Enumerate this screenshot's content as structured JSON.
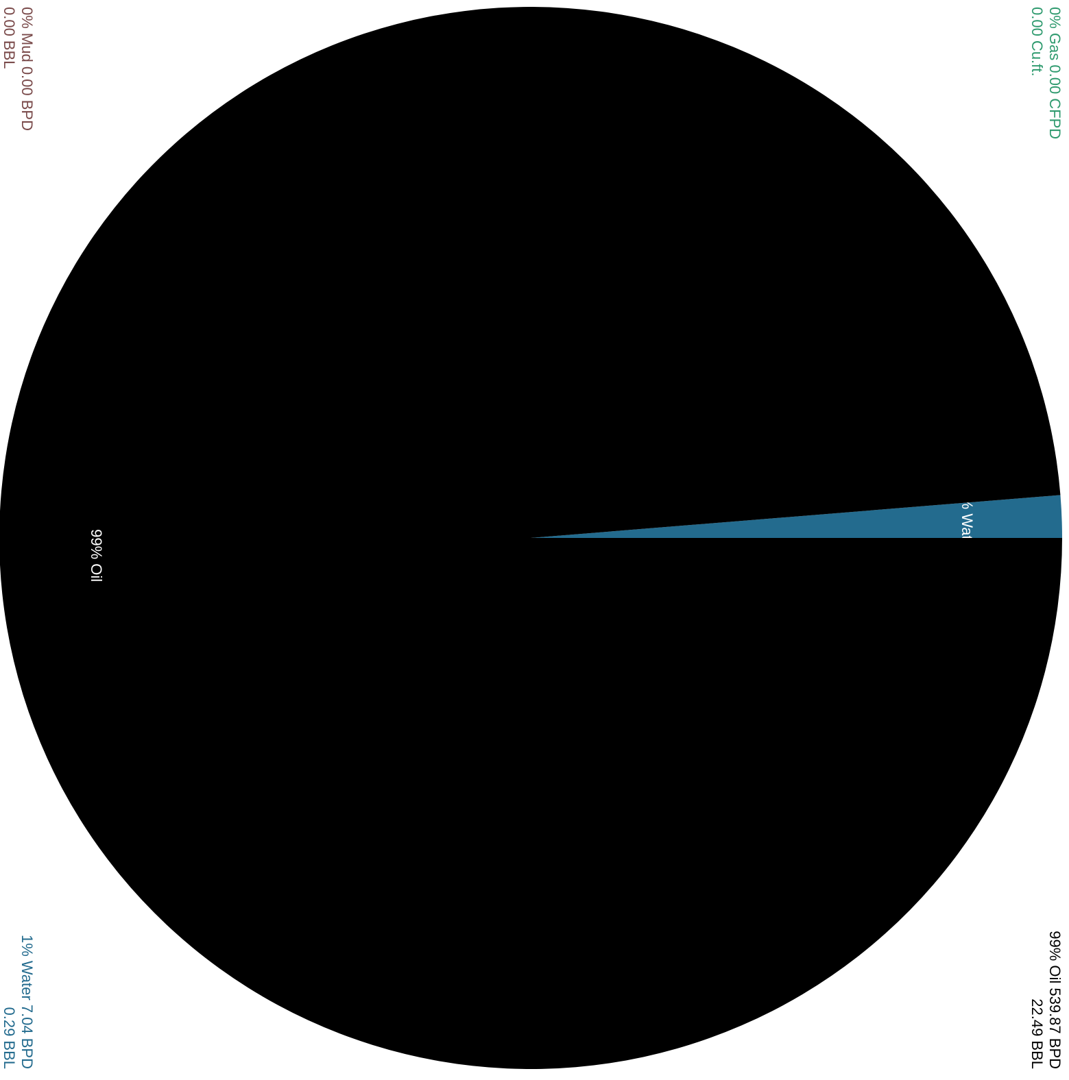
{
  "chart_data": {
    "type": "pie",
    "categories": [
      "Water",
      "Oil"
    ],
    "values": [
      7.04,
      539.87
    ],
    "colors": [
      "#236b8e",
      "#000000"
    ],
    "labels": [
      "1% Water",
      "99% Oil"
    ],
    "label_color": "#ffffff",
    "start": "right",
    "direction": "counterclockwise",
    "annotations": [
      {
        "lines": [
          "0% Mud 0.00 BPD",
          "0.00 BBL"
        ],
        "color": "#7a4a4a",
        "corner": "top-left"
      },
      {
        "lines": [
          "0% Gas 0.00 CFPD",
          "0.00 Cu.ft."
        ],
        "color": "#2e9a6e",
        "corner": "top-right"
      },
      {
        "lines": [
          "1% Water 7.04 BPD",
          "0.29 BBL"
        ],
        "color": "#236b8e",
        "corner": "bottom-left"
      },
      {
        "lines": [
          "99% Oil 539.87 BPD",
          "22.49 BBL"
        ],
        "color": "#000000",
        "corner": "bottom-right"
      }
    ]
  }
}
